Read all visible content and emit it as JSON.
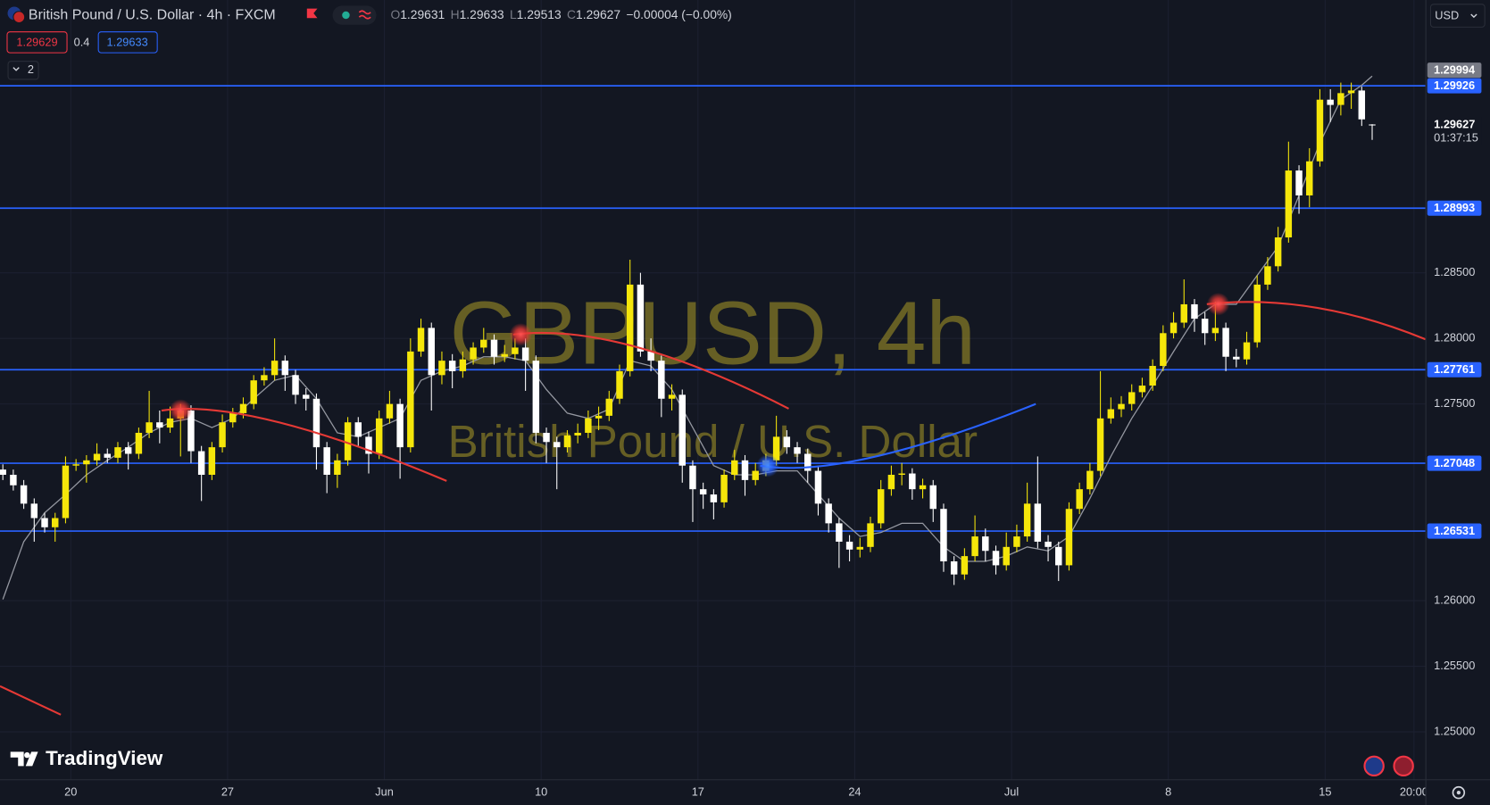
{
  "header": {
    "title": "British Pound / U.S. Dollar · 4h · FXCM",
    "ohlc_labels": [
      "O",
      "H",
      "L",
      "C"
    ],
    "ohlc_values": [
      "1.29631",
      "1.29633",
      "1.29513",
      "1.29627"
    ],
    "change": "−0.00004 (−0.00%)",
    "sell": "1.29629",
    "spread": "0.4",
    "buy": "1.29633",
    "indicators": "2",
    "currency": "USD"
  },
  "watermark": {
    "symbol": "GBPUSD, 4h",
    "description": "British Pound / U.S. Dollar"
  },
  "brand": "TradingView",
  "chart_data": {
    "type": "candlestick",
    "x": [
      0,
      2,
      4,
      6,
      8,
      10,
      12,
      14,
      16,
      18,
      20,
      22,
      24,
      26,
      28,
      30,
      32,
      34,
      36,
      38,
      40,
      42,
      44,
      46,
      48,
      50,
      52,
      54,
      56,
      58,
      60,
      62,
      64,
      66,
      68,
      70,
      72,
      74,
      76,
      78,
      80,
      82,
      84,
      86,
      88,
      90,
      92,
      94,
      96,
      98,
      100,
      102,
      104,
      106,
      108,
      110,
      112,
      114,
      116,
      118,
      120,
      122,
      124,
      126,
      128,
      130,
      132,
      134,
      136,
      138,
      140,
      142,
      144,
      146,
      148,
      150,
      152,
      154,
      156,
      158,
      160,
      162,
      164,
      166,
      168,
      170,
      172,
      174,
      176,
      178,
      180,
      182,
      184,
      186,
      188,
      190,
      192,
      194,
      196,
      198,
      200,
      202,
      204,
      206,
      208,
      210,
      212,
      214,
      216,
      218,
      220,
      222,
      224,
      226,
      228,
      230,
      232,
      234,
      236,
      238,
      240,
      242,
      244,
      246,
      248,
      250,
      252,
      254,
      256,
      258,
      260,
      262
    ],
    "open": [
      1.27,
      1.2696,
      1.2688,
      1.2674,
      1.2663,
      1.2656,
      1.2663,
      1.2703,
      1.2704,
      1.2707,
      1.2712,
      1.2709,
      1.2717,
      1.2712,
      1.2728,
      1.2736,
      1.2732,
      1.2739,
      1.2745,
      1.2714,
      1.2696,
      1.2717,
      1.2736,
      1.2743,
      1.275,
      1.2768,
      1.2772,
      1.2783,
      1.2772,
      1.2757,
      1.2754,
      1.2717,
      1.2696,
      1.2707,
      1.2736,
      1.2725,
      1.2712,
      1.2739,
      1.275,
      1.2717,
      1.279,
      1.2808,
      1.2772,
      1.2783,
      1.2775,
      1.2784,
      1.2793,
      1.2799,
      1.2786,
      1.2788,
      1.2793,
      1.2783,
      1.2728,
      1.2721,
      1.2717,
      1.2726,
      1.2728,
      1.2739,
      1.2741,
      1.2754,
      1.2775,
      1.2841,
      1.279,
      1.2783,
      1.2754,
      1.2757,
      1.2703,
      1.2685,
      1.2681,
      1.2675,
      1.2696,
      1.2707,
      1.2692,
      1.2699,
      1.2707,
      1.2725,
      1.2717,
      1.2712,
      1.2699,
      1.2674,
      1.2659,
      1.2645,
      1.2639,
      1.2641,
      1.2659,
      1.2685,
      1.2696,
      1.2697,
      1.2685,
      1.2688,
      1.267,
      1.263,
      1.262,
      1.2634,
      1.2649,
      1.2638,
      1.2627,
      1.2641,
      1.2649,
      1.2674,
      1.2645,
      1.2641,
      1.2627,
      1.267,
      1.2685,
      1.2699,
      1.2739,
      1.2746,
      1.275,
      1.2759,
      1.2764,
      1.2779,
      1.2804,
      1.2812,
      1.2826,
      1.2815,
      1.2804,
      1.2808,
      1.2786,
      1.2784,
      1.2797,
      1.2841,
      1.2855,
      1.2877,
      1.2928,
      1.2909,
      1.2935,
      1.2982,
      1.2978,
      1.2987,
      1.2989,
      1.29631
    ],
    "high": [
      1.2704,
      1.27,
      1.2692,
      1.2678,
      1.2667,
      1.2667,
      1.271,
      1.2708,
      1.2711,
      1.272,
      1.2716,
      1.2721,
      1.2721,
      1.2732,
      1.276,
      1.2745,
      1.2748,
      1.275,
      1.2749,
      1.2718,
      1.2721,
      1.2742,
      1.2747,
      1.2755,
      1.2772,
      1.2778,
      1.28,
      1.2787,
      1.2776,
      1.2762,
      1.2758,
      1.2721,
      1.2712,
      1.274,
      1.274,
      1.2729,
      1.2745,
      1.276,
      1.2754,
      1.28,
      1.2815,
      1.2812,
      1.279,
      1.2788,
      1.279,
      1.2797,
      1.2808,
      1.2803,
      1.2795,
      1.28,
      1.28,
      1.2787,
      1.2732,
      1.2725,
      1.273,
      1.2735,
      1.2745,
      1.2748,
      1.276,
      1.278,
      1.286,
      1.285,
      1.28,
      1.2787,
      1.2765,
      1.2761,
      1.2707,
      1.269,
      1.2685,
      1.27,
      1.2715,
      1.2711,
      1.2705,
      1.2712,
      1.2741,
      1.273,
      1.2721,
      1.2716,
      1.2703,
      1.2678,
      1.2663,
      1.265,
      1.2648,
      1.2664,
      1.2692,
      1.2703,
      1.2705,
      1.2701,
      1.2693,
      1.2692,
      1.2674,
      1.2634,
      1.264,
      1.2665,
      1.2655,
      1.2642,
      1.2652,
      1.2658,
      1.269,
      1.271,
      1.265,
      1.2645,
      1.2675,
      1.269,
      1.2705,
      1.2775,
      1.2755,
      1.2756,
      1.2765,
      1.277,
      1.2784,
      1.281,
      1.282,
      1.2845,
      1.283,
      1.282,
      1.2828,
      1.2812,
      1.2792,
      1.2805,
      1.2848,
      1.2862,
      1.2885,
      1.295,
      1.2932,
      1.2945,
      1.299,
      1.299,
      1.2995,
      1.2995,
      1.2992,
      1.29633
    ],
    "low": [
      1.2692,
      1.2684,
      1.267,
      1.2645,
      1.2652,
      1.2645,
      1.2659,
      1.2699,
      1.269,
      1.2703,
      1.2705,
      1.2705,
      1.27,
      1.2708,
      1.2724,
      1.272,
      1.2728,
      1.271,
      1.2705,
      1.2676,
      1.2692,
      1.2713,
      1.2732,
      1.2739,
      1.2746,
      1.2764,
      1.2768,
      1.276,
      1.275,
      1.2745,
      1.27,
      1.2682,
      1.2686,
      1.2703,
      1.2718,
      1.2697,
      1.2708,
      1.2735,
      1.2693,
      1.2713,
      1.2786,
      1.2745,
      1.2765,
      1.2762,
      1.277,
      1.278,
      1.2789,
      1.278,
      1.2782,
      1.2784,
      1.276,
      1.272,
      1.2705,
      1.2685,
      1.2713,
      1.272,
      1.2724,
      1.273,
      1.2737,
      1.275,
      1.2771,
      1.2786,
      1.2775,
      1.274,
      1.2745,
      1.269,
      1.266,
      1.267,
      1.2662,
      1.2671,
      1.2692,
      1.268,
      1.2688,
      1.2695,
      1.2703,
      1.2712,
      1.2705,
      1.269,
      1.2665,
      1.2652,
      1.2625,
      1.263,
      1.2633,
      1.2637,
      1.2655,
      1.268,
      1.2688,
      1.2677,
      1.2678,
      1.266,
      1.2622,
      1.2612,
      1.2616,
      1.263,
      1.263,
      1.262,
      1.2623,
      1.2637,
      1.2645,
      1.264,
      1.263,
      1.2615,
      1.2623,
      1.2666,
      1.2681,
      1.2695,
      1.2735,
      1.274,
      1.2745,
      1.2755,
      1.276,
      1.2775,
      1.28,
      1.2808,
      1.2805,
      1.2795,
      1.2798,
      1.2775,
      1.2778,
      1.278,
      1.2793,
      1.2837,
      1.2851,
      1.2873,
      1.2895,
      1.29,
      1.2931,
      1.2965,
      1.297,
      1.2975,
      1.2962,
      1.29513
    ],
    "close": [
      1.2696,
      1.2688,
      1.2674,
      1.2663,
      1.2656,
      1.2663,
      1.2703,
      1.2704,
      1.2707,
      1.2712,
      1.2709,
      1.2717,
      1.2712,
      1.2728,
      1.2736,
      1.2732,
      1.2739,
      1.2745,
      1.2714,
      1.2696,
      1.2717,
      1.2736,
      1.2743,
      1.275,
      1.2768,
      1.2772,
      1.2783,
      1.2772,
      1.2757,
      1.2754,
      1.2717,
      1.2696,
      1.2707,
      1.2736,
      1.2725,
      1.2712,
      1.2739,
      1.275,
      1.2717,
      1.279,
      1.2808,
      1.2772,
      1.2783,
      1.2775,
      1.2784,
      1.2793,
      1.2799,
      1.2786,
      1.2788,
      1.2793,
      1.2783,
      1.2728,
      1.2721,
      1.2717,
      1.2726,
      1.2728,
      1.2739,
      1.2741,
      1.2754,
      1.2775,
      1.2841,
      1.279,
      1.2783,
      1.2754,
      1.2757,
      1.2703,
      1.2685,
      1.2681,
      1.2675,
      1.2696,
      1.2707,
      1.2692,
      1.2699,
      1.2707,
      1.2725,
      1.2717,
      1.2712,
      1.2699,
      1.2674,
      1.2659,
      1.2645,
      1.2639,
      1.2641,
      1.2659,
      1.2685,
      1.2696,
      1.2697,
      1.2685,
      1.2688,
      1.267,
      1.263,
      1.262,
      1.2634,
      1.2649,
      1.2638,
      1.2627,
      1.2641,
      1.2649,
      1.2674,
      1.2645,
      1.2641,
      1.2627,
      1.267,
      1.2685,
      1.2699,
      1.2739,
      1.2746,
      1.275,
      1.2759,
      1.2764,
      1.2779,
      1.2804,
      1.2812,
      1.2826,
      1.2815,
      1.2804,
      1.2808,
      1.2786,
      1.2784,
      1.2797,
      1.2841,
      1.2855,
      1.2877,
      1.2928,
      1.2909,
      1.2935,
      1.2982,
      1.2978,
      1.2987,
      1.2989,
      1.2967,
      1.29627
    ],
    "up_color": "#f5e60a",
    "down_color": "#ffffff",
    "ma": {
      "color": "#9598a1",
      "x": [
        0,
        4,
        8,
        12,
        16,
        20,
        24,
        28,
        32,
        36,
        40,
        44,
        48,
        52,
        56,
        60,
        64,
        68,
        72,
        76,
        80,
        84,
        88,
        92,
        96,
        100,
        104,
        108,
        112,
        116,
        120,
        124,
        128,
        132,
        136,
        140,
        144,
        148,
        152,
        156,
        160,
        164,
        168,
        172,
        176,
        180,
        184,
        188,
        192,
        196,
        200,
        204,
        208,
        212,
        216,
        220,
        224,
        228,
        232,
        236,
        240,
        244,
        248,
        252,
        256,
        260,
        262
      ],
      "values": [
        1.2601,
        1.2645,
        1.2667,
        1.2681,
        1.2696,
        1.2707,
        1.2717,
        1.2728,
        1.2736,
        1.2739,
        1.2732,
        1.2739,
        1.2754,
        1.2768,
        1.2772,
        1.2754,
        1.2728,
        1.2725,
        1.2732,
        1.2739,
        1.2768,
        1.2775,
        1.2779,
        1.2786,
        1.2786,
        1.2783,
        1.2761,
        1.2743,
        1.2739,
        1.2746,
        1.2783,
        1.2779,
        1.2761,
        1.2732,
        1.2703,
        1.2696,
        1.2696,
        1.2699,
        1.2699,
        1.2681,
        1.2663,
        1.2649,
        1.2652,
        1.2659,
        1.2659,
        1.2641,
        1.263,
        1.263,
        1.2634,
        1.2641,
        1.2638,
        1.2649,
        1.2678,
        1.271,
        1.2739,
        1.2764,
        1.279,
        1.2815,
        1.2826,
        1.2826,
        1.2848,
        1.287,
        1.2909,
        1.2949,
        1.2982,
        1.2993,
        1.3
      ]
    },
    "levels": [
      1.29926,
      1.28993,
      1.27761,
      1.27048,
      1.26531
    ],
    "level_color": "#2962ff",
    "high_label": 1.29994,
    "last_price": 1.29627,
    "countdown": "01:37:15",
    "xlim": [
      -0.545,
      272.182
    ],
    "ylim": [
      1.24638,
      1.3058
    ],
    "xticks": [
      {
        "value": 13,
        "label": "20"
      },
      {
        "value": 43,
        "label": "27"
      },
      {
        "value": 73,
        "label": "Jun"
      },
      {
        "value": 103,
        "label": "10"
      },
      {
        "value": 133,
        "label": "17"
      },
      {
        "value": 163,
        "label": "24"
      },
      {
        "value": 193,
        "label": "Jul"
      },
      {
        "value": 223,
        "label": "8"
      },
      {
        "value": 253,
        "label": "15"
      },
      {
        "value": 270,
        "label": "20:00"
      }
    ],
    "yticks": [
      {
        "value": 1.25,
        "label": "1.25000"
      },
      {
        "value": 1.255,
        "label": "1.25500"
      },
      {
        "value": 1.26,
        "label": "1.26000"
      },
      {
        "value": 1.275,
        "label": "1.27500"
      },
      {
        "value": 1.28,
        "label": "1.28000"
      },
      {
        "value": 1.285,
        "label": "1.28500"
      }
    ],
    "grid": true
  }
}
